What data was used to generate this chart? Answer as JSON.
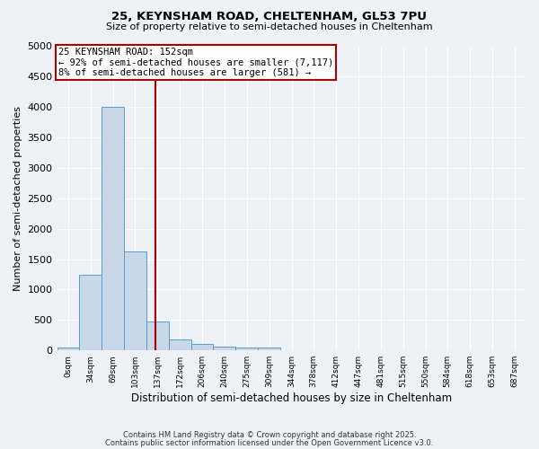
{
  "title_line1": "25, KEYNSHAM ROAD, CHELTENHAM, GL53 7PU",
  "title_line2": "Size of property relative to semi-detached houses in Cheltenham",
  "xlabel": "Distribution of semi-detached houses by size in Cheltenham",
  "ylabel": "Number of semi-detached properties",
  "bin_labels": [
    "0sqm",
    "34sqm",
    "69sqm",
    "103sqm",
    "137sqm",
    "172sqm",
    "206sqm",
    "240sqm",
    "275sqm",
    "309sqm",
    "344sqm",
    "378sqm",
    "412sqm",
    "447sqm",
    "481sqm",
    "515sqm",
    "550sqm",
    "584sqm",
    "618sqm",
    "653sqm",
    "687sqm"
  ],
  "bin_edges": [
    0,
    34,
    69,
    103,
    137,
    172,
    206,
    240,
    275,
    309,
    344,
    378,
    412,
    447,
    481,
    515,
    550,
    584,
    618,
    653,
    687,
    721
  ],
  "bar_heights": [
    50,
    1250,
    4000,
    1625,
    475,
    175,
    100,
    60,
    50,
    40,
    0,
    0,
    0,
    0,
    0,
    0,
    0,
    0,
    0,
    0,
    0
  ],
  "bar_color": "#c8d8e8",
  "bar_edge_color": "#5a9dc8",
  "background_color": "#eef2f7",
  "grid_color": "#ffffff",
  "property_size": 152,
  "vline_color": "#aa0000",
  "ylim": [
    0,
    5000
  ],
  "yticks": [
    0,
    500,
    1000,
    1500,
    2000,
    2500,
    3000,
    3500,
    4000,
    4500,
    5000
  ],
  "annotation_line1": "25 KEYNSHAM ROAD: 152sqm",
  "annotation_line2": "← 92% of semi-detached houses are smaller (7,117)",
  "annotation_line3": "8% of semi-detached houses are larger (581) →",
  "annotation_box_color": "#aa0000",
  "footer1": "Contains HM Land Registry data © Crown copyright and database right 2025.",
  "footer2": "Contains public sector information licensed under the Open Government Licence v3.0."
}
